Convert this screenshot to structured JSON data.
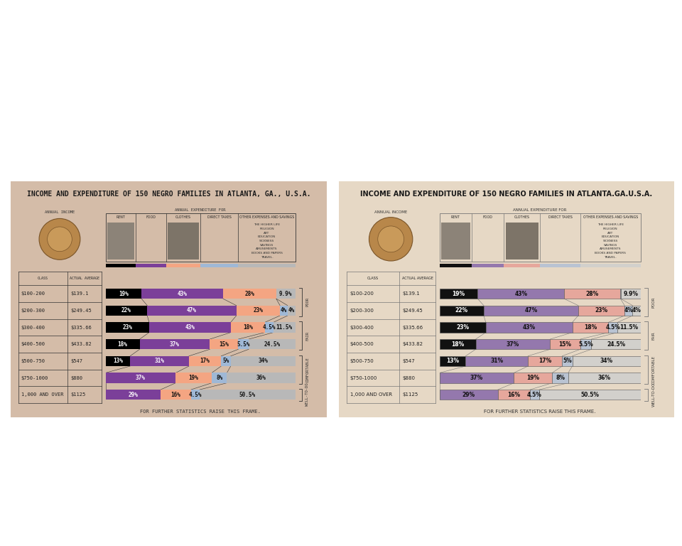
{
  "chart_data": [
    {
      "type": "bar",
      "orientation": "horizontal",
      "stacked": true,
      "data_labels": true,
      "tick_labels": false,
      "title": "INCOME AND EXPENDITURE OF 150 NEGRO FAMILIES IN ATLANTA, GA., U.S.A.",
      "annual_income": "ANNUAL INCOME",
      "expenditure_heading": "ANNUAL EXPENDITURE FOR",
      "other_items": [
        "THE HIGHER LIFE",
        "RELIGION",
        "ART",
        "EDUCATION",
        "SICKNESS",
        "SAVINGS",
        "AMUSEMENTS",
        "BOOKS AND PAPERS",
        "TRAVEL."
      ],
      "footer": "FOR FURTHER STATISTICS RAISE THIS FRAME.",
      "table_columns": [
        "CLASS",
        "ACTUAL AVERAGE"
      ],
      "categories": [
        "$100-200",
        "$200-300",
        "$300-400",
        "$400-500",
        "$500-750",
        "$750-1000",
        "1,000 AND OVER"
      ],
      "actual_average": {
        "values": [
          139.1,
          249.45,
          335.66,
          433.82,
          547,
          880,
          1125
        ],
        "value_labels": [
          "$139.1",
          "$249.45",
          "$335.66",
          "$433.82",
          "$547",
          "$880",
          "$1125"
        ]
      },
      "groups": [
        {
          "label": "POOR",
          "categories": [
            "$100-200",
            "$200-300"
          ]
        },
        {
          "label": "FAIR",
          "categories": [
            "$300-400",
            "$400-500"
          ]
        },
        {
          "label": "COMFORTABLE",
          "categories": [
            "$500-750",
            "$750-1000"
          ]
        },
        {
          "label": "WELL-TO-DO",
          "categories": [
            "1,000 AND OVER"
          ]
        }
      ],
      "xlim": [
        0,
        100
      ],
      "series": [
        {
          "name": "RENT",
          "color": "#000000",
          "values": [
            19,
            22,
            23,
            18,
            13,
            0,
            0
          ],
          "value_labels": [
            "19%",
            "22%",
            "23%",
            "18%",
            "13%",
            null,
            null
          ]
        },
        {
          "name": "FOOD",
          "color": "#7b3f99",
          "values": [
            43,
            47,
            43,
            37,
            31,
            37,
            29
          ],
          "value_labels": [
            "43%",
            "47%",
            "43%",
            "37%",
            "31%",
            "37%",
            "29%"
          ]
        },
        {
          "name": "CLOTHES",
          "color": "#f4a582",
          "values": [
            28,
            23,
            18,
            15,
            17,
            19,
            16
          ],
          "value_labels": [
            "28%",
            "23%",
            "18%",
            "15%",
            "17%",
            "19%",
            "16%"
          ]
        },
        {
          "name": "DIRECT TAXES",
          "color": "#9fb8d6",
          "values": [
            0.1,
            4,
            4.5,
            5.5,
            5,
            8,
            4.5
          ],
          "value_labels": [
            null,
            "4%",
            "4.5%",
            "5.5%",
            "5%",
            "8%",
            "4.5%"
          ]
        },
        {
          "name": "OTHER EXPENSES AND SAVINGS",
          "color": "#b8b8b8",
          "values": [
            9.9,
            4,
            11.5,
            24.5,
            34,
            36,
            50.5
          ],
          "value_labels": [
            "9.9%",
            "4%",
            "11.5%",
            "24.5%",
            "34%",
            "36%",
            "50.5%"
          ]
        }
      ]
    },
    {
      "type": "bar",
      "orientation": "horizontal",
      "stacked": true,
      "data_labels": true,
      "tick_labels": false,
      "title": "INCOME AND EXPENDITURE OF 150 NEGRO FAMILIES IN ATLANTA.GA.U.S.A.",
      "annual_income": "ANNUAL INCOME",
      "expenditure_heading": "ANNUAL EXPENDITURE FOR",
      "other_items": [
        "THE HIGHER LIFE",
        "RELIGION",
        "ART",
        "EDUCATION",
        "SICKNESS",
        "SAVINGS",
        "AMUSEMENTS",
        "BOOKS AND PAPERS",
        "TRAVEL."
      ],
      "footer": "FOR FURTHER STATISTICS RAISE THIS FRAME.",
      "table_columns": [
        "CLASS",
        "ACTUAL AVERAGE"
      ],
      "categories": [
        "$100-200",
        "$200-300",
        "$300-400",
        "$400-500",
        "$500-750",
        "$750-1000",
        "1,000 AND OVER"
      ],
      "actual_average": {
        "values": [
          139.1,
          249.45,
          335.66,
          433.82,
          547,
          880,
          1125
        ],
        "value_labels": [
          "$139.1",
          "$249.45",
          "$335.66",
          "$433.82",
          "$547",
          "$880",
          "$1125"
        ]
      },
      "groups": [
        {
          "label": "POOR",
          "categories": [
            "$100-200",
            "$200-300"
          ]
        },
        {
          "label": "FAIR",
          "categories": [
            "$300-400",
            "$400-500"
          ]
        },
        {
          "label": "COMFORTABLE",
          "categories": [
            "$500-750",
            "$750-1000"
          ]
        },
        {
          "label": "WELL-TO-DO",
          "categories": [
            "1,000 AND OVER"
          ]
        }
      ],
      "xlim": [
        0,
        100
      ],
      "series": [
        {
          "name": "RENT",
          "color": "#111111",
          "values": [
            19,
            22,
            23,
            18,
            13,
            0,
            0
          ],
          "value_labels": [
            "19%",
            "22%",
            "23%",
            "18%",
            "13%",
            null,
            null
          ]
        },
        {
          "name": "FOOD",
          "color": "#9478ad",
          "values": [
            43,
            47,
            43,
            37,
            31,
            37,
            29
          ],
          "value_labels": [
            "43%",
            "47%",
            "43%",
            "37%",
            "31%",
            "37%",
            "29%"
          ]
        },
        {
          "name": "CLOTHES",
          "color": "#e6a79c",
          "values": [
            28,
            23,
            18,
            15,
            17,
            19,
            16
          ],
          "value_labels": [
            "28%",
            "23%",
            "18%",
            "15%",
            "17%",
            "19%",
            "16%"
          ]
        },
        {
          "name": "DIRECT TAXES",
          "color": "#b9c3d2",
          "values": [
            0.1,
            4,
            4.5,
            5.5,
            5,
            8,
            4.5
          ],
          "value_labels": [
            null,
            "4%",
            "4.5%",
            "5.5%",
            "5%",
            "8%",
            "4.5%"
          ]
        },
        {
          "name": "OTHER EXPENSES AND SAVINGS",
          "color": "#d2d0cc",
          "values": [
            9.9,
            4,
            11.5,
            24.5,
            34,
            36,
            50.5
          ],
          "value_labels": [
            "9.9%",
            "4%",
            "11.5%",
            "24.5%",
            "34%",
            "36%",
            "50.5%"
          ]
        }
      ]
    }
  ]
}
